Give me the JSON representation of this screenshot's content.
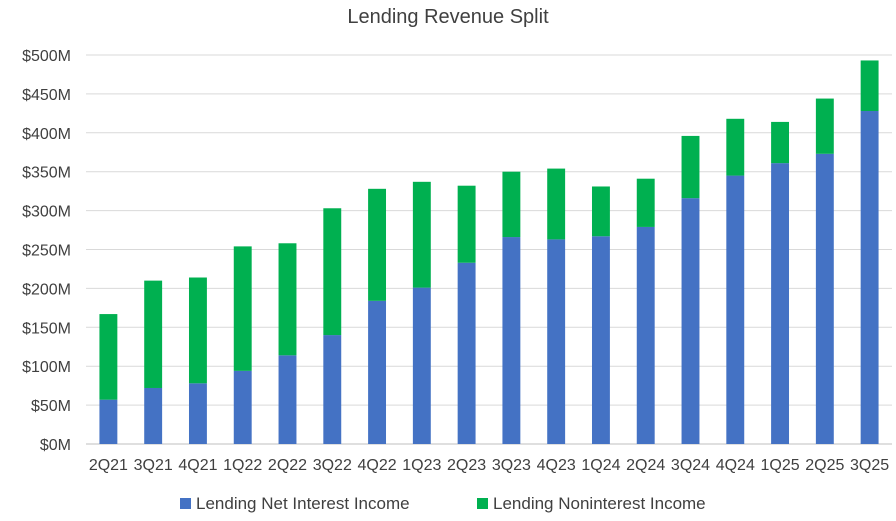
{
  "chart_data": {
    "type": "bar",
    "stacked": true,
    "title": "Lending Revenue Split",
    "xlabel": "",
    "ylabel": "",
    "ylim": [
      0,
      500
    ],
    "yticks": [
      0,
      50,
      100,
      150,
      200,
      250,
      300,
      350,
      400,
      450,
      500
    ],
    "ytick_labels": [
      "$0M",
      "$50M",
      "$100M",
      "$150M",
      "$200M",
      "$250M",
      "$300M",
      "$350M",
      "$400M",
      "$450M",
      "$500M"
    ],
    "grid": true,
    "legend_position": "bottom",
    "categories": [
      "2Q21",
      "3Q21",
      "4Q21",
      "1Q22",
      "2Q22",
      "3Q22",
      "4Q22",
      "1Q23",
      "2Q23",
      "3Q23",
      "4Q23",
      "1Q24",
      "2Q24",
      "3Q24",
      "4Q24",
      "1Q25",
      "2Q25",
      "3Q25"
    ],
    "series": [
      {
        "name": "Lending Net Interest Income",
        "color": "#4472C4",
        "values": [
          57,
          72,
          78,
          94,
          114,
          140,
          184,
          201,
          233,
          266,
          263,
          267,
          279,
          316,
          345,
          361,
          373,
          428
        ]
      },
      {
        "name": "Lending Noninterest Income",
        "color": "#00B050",
        "values": [
          110,
          138,
          136,
          160,
          144,
          163,
          144,
          136,
          99,
          84,
          91,
          64,
          62,
          80,
          73,
          53,
          71,
          65
        ]
      }
    ]
  }
}
